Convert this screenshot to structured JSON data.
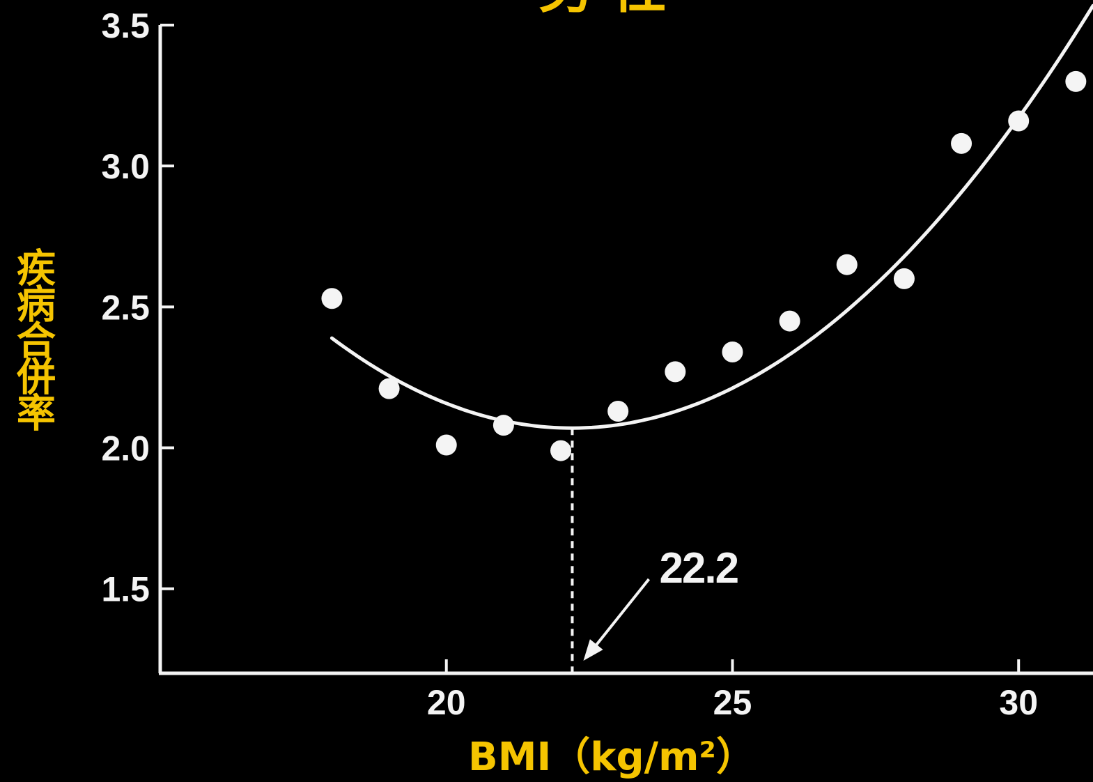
{
  "chart_data": {
    "type": "scatter",
    "title": "男 性",
    "xlabel": "BMI（kg/m²）",
    "ylabel": "疾病合併率",
    "xlim": [
      15,
      31.3
    ],
    "ylim": [
      1.2,
      3.5
    ],
    "xticks": [
      "20",
      "25",
      "30"
    ],
    "yticks": [
      "1.5",
      "2.0",
      "2.5",
      "3.0",
      "3.5"
    ],
    "grid": false,
    "points": [
      {
        "x": 18,
        "y": 2.53
      },
      {
        "x": 19,
        "y": 2.21
      },
      {
        "x": 20,
        "y": 2.01
      },
      {
        "x": 21,
        "y": 2.08
      },
      {
        "x": 22,
        "y": 1.99
      },
      {
        "x": 23,
        "y": 2.13
      },
      {
        "x": 24,
        "y": 2.27
      },
      {
        "x": 25,
        "y": 2.34
      },
      {
        "x": 26,
        "y": 2.45
      },
      {
        "x": 27,
        "y": 2.65
      },
      {
        "x": 28,
        "y": 2.6
      },
      {
        "x": 29,
        "y": 3.08
      },
      {
        "x": 30,
        "y": 3.16
      },
      {
        "x": 31,
        "y": 3.3
      }
    ],
    "fit_curve": {
      "type": "quadratic",
      "vertex_x": 22.2,
      "vertex_y": 2.07,
      "a": 0.0181,
      "x_range": [
        18,
        31.3
      ]
    },
    "annotation": {
      "text": "22.2",
      "x": 22.2
    },
    "colors": {
      "background": "#000000",
      "axis": "#f4f4f4",
      "points": "#f4f4f4",
      "curve": "#f4f4f4",
      "axis_title": "#f5c400"
    }
  }
}
